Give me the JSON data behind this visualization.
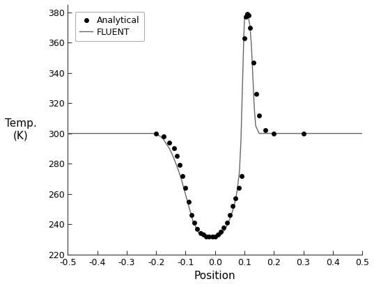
{
  "xlabel": "Position",
  "ylabel": "Temp.\n(K)",
  "xlim": [
    -0.5,
    0.5
  ],
  "ylim": [
    220,
    385
  ],
  "yticks": [
    220,
    240,
    260,
    280,
    300,
    320,
    340,
    360,
    380
  ],
  "xticks": [
    -0.5,
    -0.4,
    -0.3,
    -0.2,
    -0.1,
    0.0,
    0.1,
    0.2,
    0.3,
    0.4,
    0.5
  ],
  "line_color": "#666666",
  "dot_color": "#000000",
  "background_color": "#ffffff",
  "fluent_x": [
    -0.5,
    -0.21,
    -0.195,
    -0.185,
    -0.175,
    -0.165,
    -0.155,
    -0.145,
    -0.135,
    -0.125,
    -0.115,
    -0.105,
    -0.095,
    -0.085,
    -0.075,
    -0.065,
    -0.055,
    -0.045,
    -0.035,
    -0.025,
    -0.015,
    -0.005,
    0.005,
    0.015,
    0.025,
    0.035,
    0.045,
    0.055,
    0.065,
    0.075,
    0.083,
    0.088,
    0.093,
    0.098,
    0.1,
    0.103,
    0.108,
    0.113,
    0.118,
    0.123,
    0.128,
    0.133,
    0.138,
    0.15,
    0.2,
    0.3,
    0.5
  ],
  "fluent_y": [
    300,
    300,
    299,
    298,
    296,
    293,
    290,
    286,
    281,
    276,
    270,
    263,
    256,
    249,
    242,
    238,
    234,
    233,
    232,
    232,
    232,
    232,
    232,
    232,
    234,
    237,
    241,
    246,
    252,
    262,
    275,
    295,
    330,
    365,
    376,
    378,
    378,
    377,
    372,
    360,
    340,
    318,
    305,
    300,
    300,
    300,
    300
  ],
  "analytical_x": [
    -0.2,
    -0.175,
    -0.155,
    -0.14,
    -0.13,
    -0.12,
    -0.11,
    -0.1,
    -0.09,
    -0.08,
    -0.07,
    -0.06,
    -0.05,
    -0.04,
    -0.03,
    -0.02,
    -0.01,
    0.0,
    0.01,
    0.02,
    0.03,
    0.04,
    0.05,
    0.06,
    0.07,
    0.08,
    0.09,
    0.1,
    0.105,
    0.11,
    0.115,
    0.12,
    0.13,
    0.14,
    0.15,
    0.17,
    0.2,
    0.3
  ],
  "analytical_y": [
    300,
    298,
    294,
    290,
    285,
    279,
    272,
    264,
    255,
    246,
    241,
    237,
    234,
    233,
    232,
    232,
    232,
    232,
    233,
    235,
    238,
    241,
    246,
    252,
    257,
    264,
    272,
    363,
    377,
    379,
    378,
    370,
    347,
    326,
    312,
    302,
    300,
    300
  ],
  "legend_loc": "upper right",
  "dot_size": 5
}
